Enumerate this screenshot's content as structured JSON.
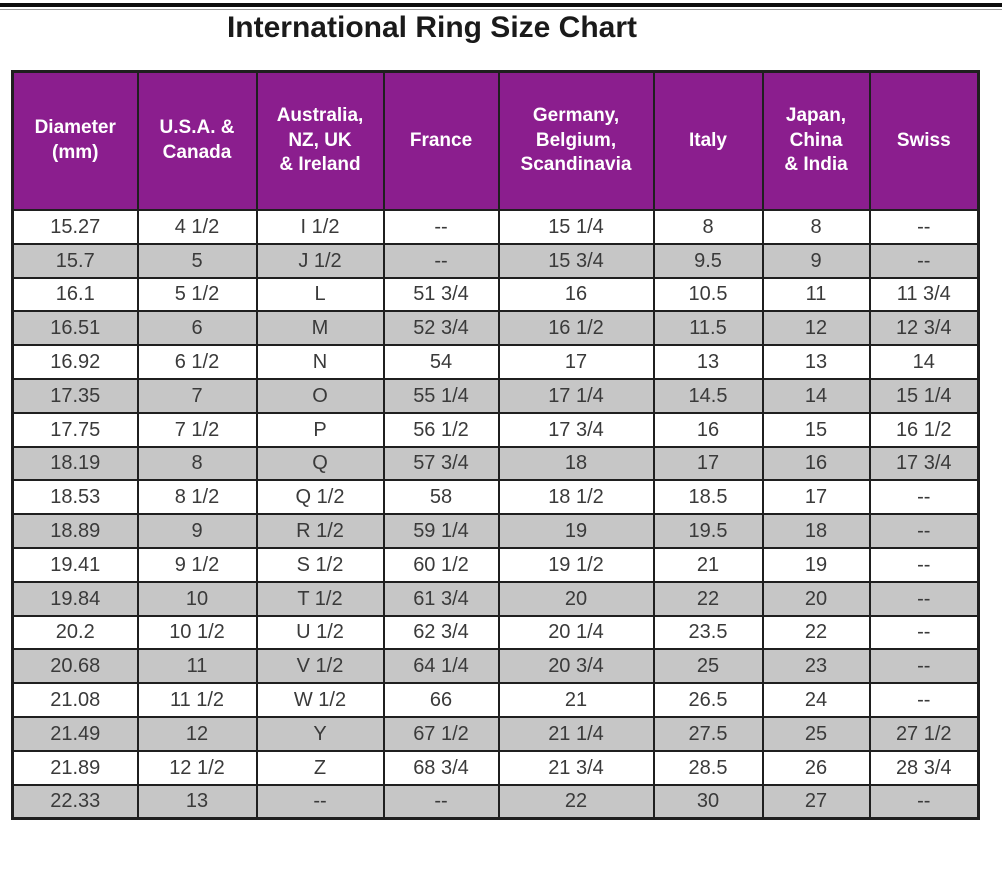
{
  "title": "International Ring Size Chart",
  "chart_data": {
    "type": "table",
    "title": "International Ring Size Chart",
    "columns": [
      "Diameter\n(mm)",
      "U.S.A. &\nCanada",
      "Australia,\nNZ, UK\n& Ireland",
      "France",
      "Germany,\nBelgium,\nScandinavia",
      "Italy",
      "Japan,\nChina\n& India",
      "Swiss"
    ],
    "rows": [
      [
        "15.27",
        "4 1/2",
        "I 1/2",
        "--",
        "15 1/4",
        "8",
        "8",
        "--"
      ],
      [
        "15.7",
        "5",
        "J 1/2",
        "--",
        "15 3/4",
        "9.5",
        "9",
        "--"
      ],
      [
        "16.1",
        "5 1/2",
        "L",
        "51 3/4",
        "16",
        "10.5",
        "11",
        "11 3/4"
      ],
      [
        "16.51",
        "6",
        "M",
        "52 3/4",
        "16 1/2",
        "11.5",
        "12",
        "12 3/4"
      ],
      [
        "16.92",
        "6 1/2",
        "N",
        "54",
        "17",
        "13",
        "13",
        "14"
      ],
      [
        "17.35",
        "7",
        "O",
        "55 1/4",
        "17 1/4",
        "14.5",
        "14",
        "15 1/4"
      ],
      [
        "17.75",
        "7 1/2",
        "P",
        "56 1/2",
        "17 3/4",
        "16",
        "15",
        "16 1/2"
      ],
      [
        "18.19",
        "8",
        "Q",
        "57 3/4",
        "18",
        "17",
        "16",
        "17 3/4"
      ],
      [
        "18.53",
        "8 1/2",
        "Q 1/2",
        "58",
        "18 1/2",
        "18.5",
        "17",
        "--"
      ],
      [
        "18.89",
        "9",
        "R 1/2",
        "59 1/4",
        "19",
        "19.5",
        "18",
        "--"
      ],
      [
        "19.41",
        "9 1/2",
        "S 1/2",
        "60 1/2",
        "19 1/2",
        "21",
        "19",
        "--"
      ],
      [
        "19.84",
        "10",
        "T 1/2",
        "61 3/4",
        "20",
        "22",
        "20",
        "--"
      ],
      [
        "20.2",
        "10 1/2",
        "U 1/2",
        "62 3/4",
        "20 1/4",
        "23.5",
        "22",
        "--"
      ],
      [
        "20.68",
        "11",
        "V 1/2",
        "64 1/4",
        "20 3/4",
        "25",
        "23",
        "--"
      ],
      [
        "21.08",
        "11 1/2",
        "W 1/2",
        "66",
        "21",
        "26.5",
        "24",
        "--"
      ],
      [
        "21.49",
        "12",
        "Y",
        "67 1/2",
        "21 1/4",
        "27.5",
        "25",
        "27 1/2"
      ],
      [
        "21.89",
        "12 1/2",
        "Z",
        "68 3/4",
        "21 3/4",
        "28.5",
        "26",
        "28 3/4"
      ],
      [
        "22.33",
        "13",
        "--",
        "--",
        "22",
        "30",
        "27",
        "--"
      ]
    ]
  },
  "colors": {
    "page_bg": "#ffffff",
    "header_bg": "#8b1e8e",
    "header_text": "#ffffff",
    "row_white": "#ffffff",
    "row_gray": "#c6c6c6",
    "border": "#1f1f1f",
    "cell_text": "#3a3a3a",
    "title_text": "#1a1a1a"
  }
}
